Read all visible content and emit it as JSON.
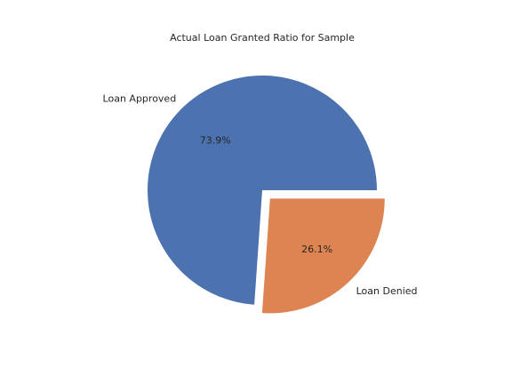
{
  "chart_data": {
    "type": "pie",
    "title": "Actual Loan Granted Ratio for Sample",
    "labels": [
      "Loan Approved",
      "Loan Denied"
    ],
    "values": [
      73.9,
      26.1
    ],
    "percent_labels": [
      "73.9%",
      "26.1%"
    ],
    "colors": [
      "#4c72b0",
      "#dd8452"
    ],
    "explode": [
      0,
      0.1
    ],
    "start_angle_deg": 0,
    "direction": "counterclockwise",
    "legend": "none"
  }
}
